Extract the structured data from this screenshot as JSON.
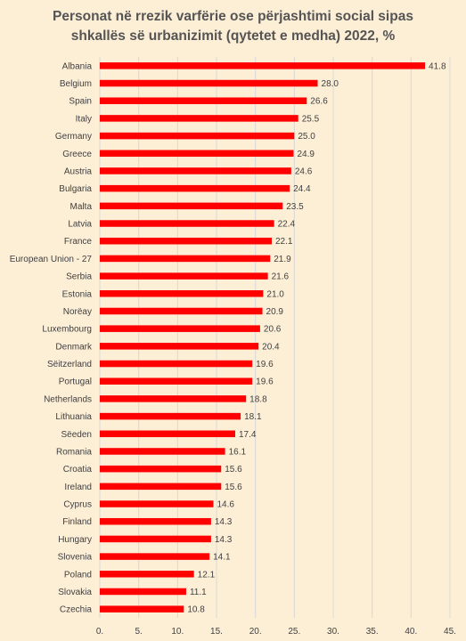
{
  "chart_data": {
    "type": "bar",
    "orientation": "horizontal",
    "title_lines": [
      "Personat në rrezik varfërie ose përjashtimi social sipas",
      "shkallës së urbanizimit (qytetet e medha) 2022, %"
    ],
    "categories": [
      "Albania",
      "Belgium",
      "Spain",
      "Italy",
      "Germany",
      "Greece",
      "Austria",
      "Bulgaria",
      "Malta",
      "Latvia",
      "France",
      "European Union - 27",
      "Serbia",
      "Estonia",
      "Noreay",
      "Luxembourg",
      "Denmark",
      "Seitzerland",
      "Portugal",
      "Netherlands",
      "Lithuania",
      "Seeden",
      "Romania",
      "Croatia",
      "Ireland",
      "Cyprus",
      "Finland",
      "Hungary",
      "Slovenia",
      "Poland",
      "Slovakia",
      "Czechia"
    ],
    "category_labels": [
      "Albania",
      "Belgium",
      "Spain",
      "Italy",
      "Germany",
      "Greece",
      "Austria",
      "Bulgaria",
      "Malta",
      "Latvia",
      "France",
      "European Union - 27",
      "Serbia",
      "Estonia",
      "Norëay",
      "Luxembourg",
      "Denmark",
      "Sëitzerland",
      "Portugal",
      "Netherlands",
      "Lithuania",
      "Sëeden",
      "Romania",
      "Croatia",
      "Ireland",
      "Cyprus",
      "Finland",
      "Hungary",
      "Slovenia",
      "Poland",
      "Slovakia",
      "Czechia"
    ],
    "values": [
      41.8,
      28.0,
      26.6,
      25.5,
      25.0,
      24.9,
      24.6,
      24.4,
      23.5,
      22.4,
      22.1,
      21.9,
      21.6,
      21.0,
      20.9,
      20.6,
      20.4,
      19.6,
      19.6,
      18.8,
      18.1,
      17.4,
      16.1,
      15.6,
      15.6,
      14.6,
      14.3,
      14.3,
      14.1,
      12.1,
      11.1,
      10.8
    ],
    "value_labels": [
      "41.8",
      "28.0",
      "26.6",
      "25.5",
      "25.0",
      "24.9",
      "24.6",
      "24.4",
      "23.5",
      "22.4",
      "22.1",
      "21.9",
      "21.6",
      "21.0",
      "20.9",
      "20.6",
      "20.4",
      "19.6",
      "19.6",
      "18.8",
      "18.1",
      "17.4",
      "16.1",
      "15.6",
      "15.6",
      "14.6",
      "14.3",
      "14.3",
      "14.1",
      "12.1",
      "11.1",
      "10.8"
    ],
    "xlim": [
      0,
      45
    ],
    "xticks": [
      0,
      5,
      10,
      15,
      20,
      25,
      30,
      35,
      40,
      45
    ],
    "xtick_labels": [
      "0.",
      "5.",
      "10.",
      "15.",
      "20.",
      "25.",
      "30.",
      "35.",
      "40.",
      "45."
    ],
    "grid": "vertical",
    "bar_color": "#ff0000",
    "grid_color": "#d9d9d9",
    "background_color": "#fdeed6"
  }
}
